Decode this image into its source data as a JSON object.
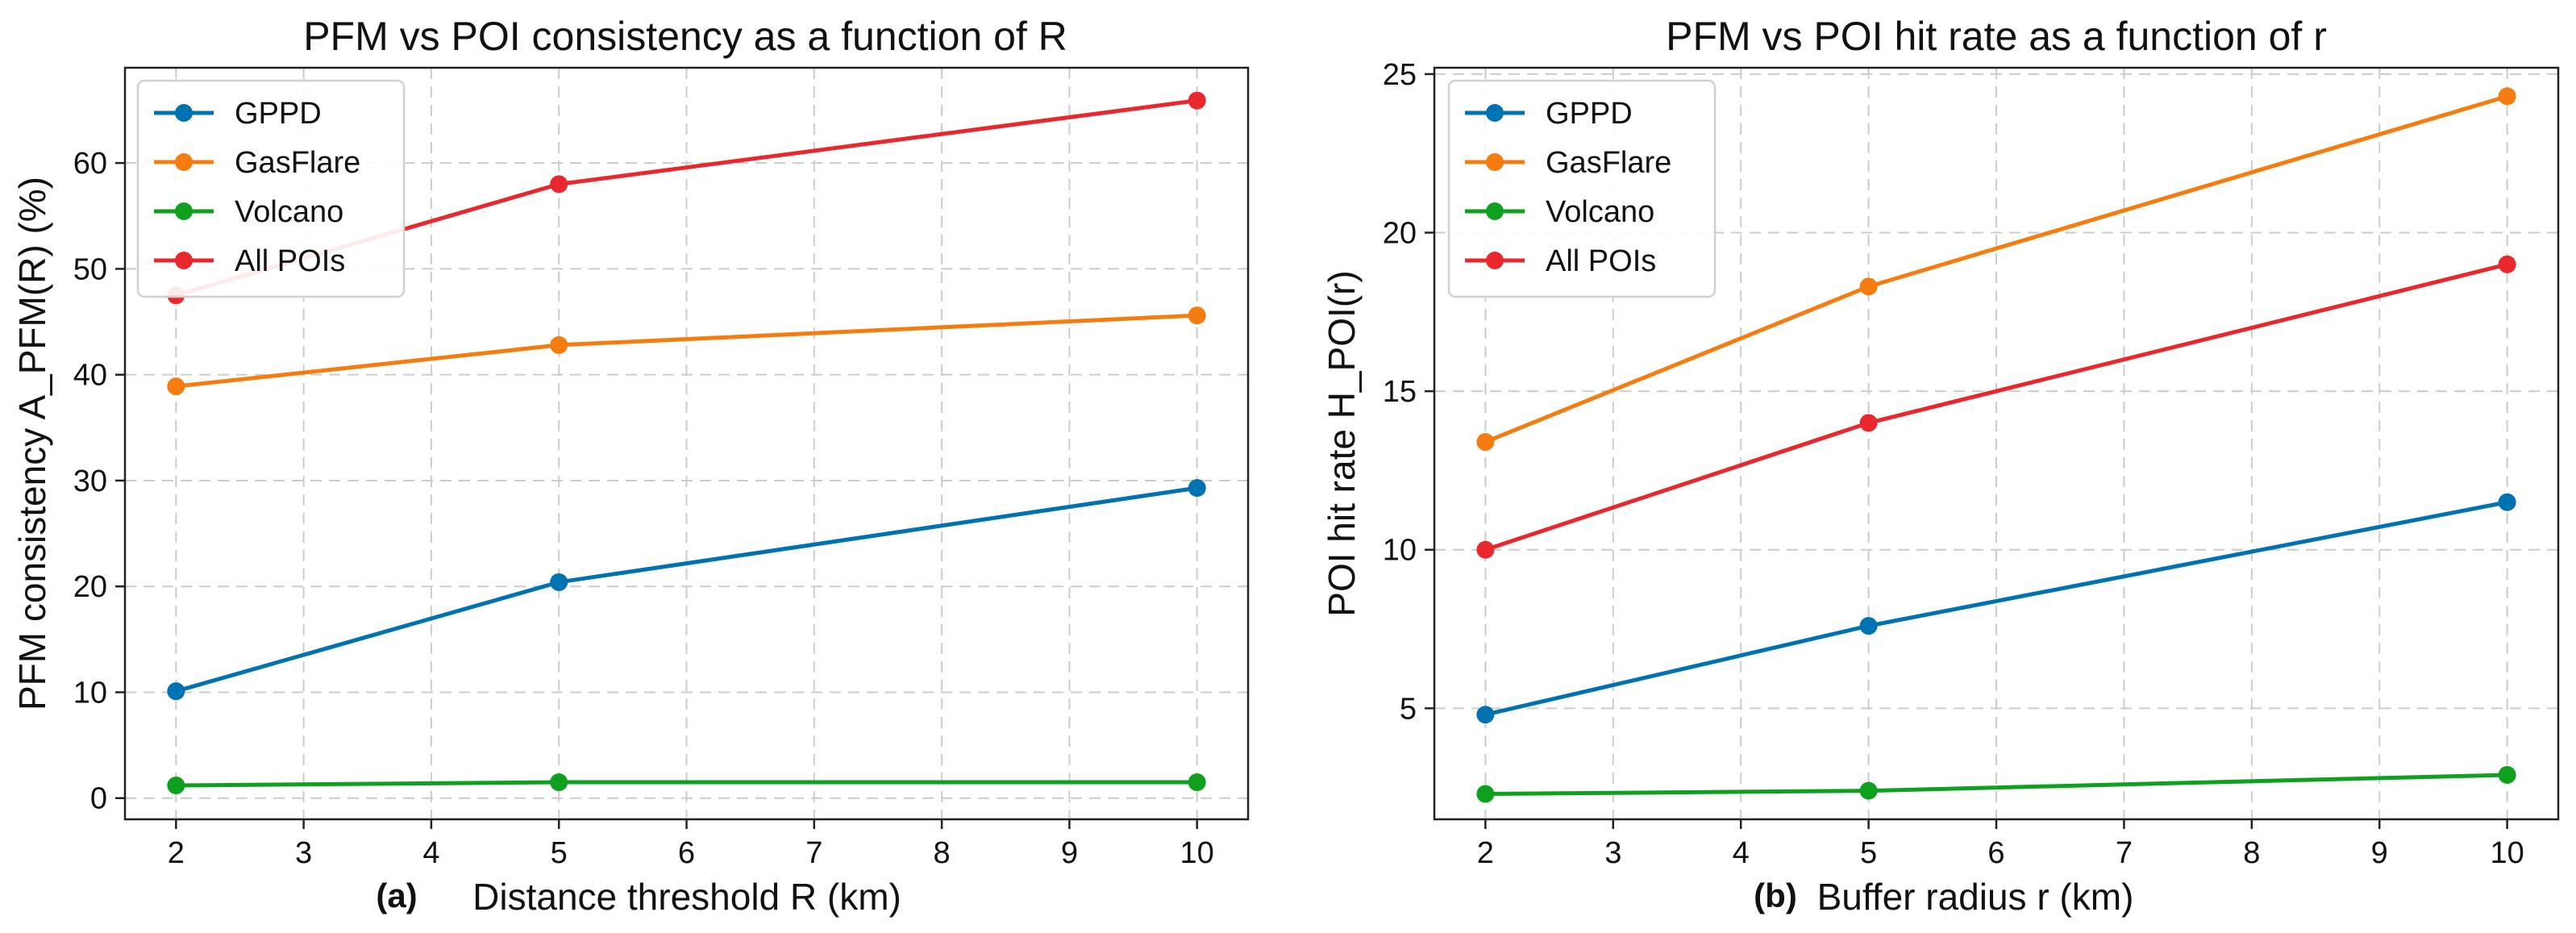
{
  "colors": {
    "GPPD": "#0072b2",
    "GasFlare": "#f57c10",
    "Volcano": "#10a020",
    "All POIs": "#e8282c"
  },
  "chart_data": [
    {
      "type": "line",
      "panel": "(a)",
      "title": "PFM vs POI consistency as a function of R",
      "xlabel": "Distance threshold R (km)",
      "ylabel": "PFM consistency A_PFM(R) (%)",
      "x": [
        2,
        5,
        10
      ],
      "xlim": [
        1.6,
        10.4
      ],
      "ylim": [
        -2,
        69
      ],
      "xticks": [
        2,
        3,
        4,
        5,
        6,
        7,
        8,
        9,
        10
      ],
      "yticks": [
        0,
        10,
        20,
        30,
        40,
        50,
        60
      ],
      "legend_position": "upper-left",
      "series": [
        {
          "name": "GPPD",
          "values": [
            10.1,
            20.4,
            29.3
          ]
        },
        {
          "name": "GasFlare",
          "values": [
            38.9,
            42.8,
            45.6
          ]
        },
        {
          "name": "Volcano",
          "values": [
            1.2,
            1.5,
            1.5
          ]
        },
        {
          "name": "All POIs",
          "values": [
            47.5,
            58.0,
            65.9
          ]
        }
      ]
    },
    {
      "type": "line",
      "panel": "(b)",
      "title": "PFM vs POI hit rate as a function of r",
      "xlabel": "Buffer radius r (km)",
      "ylabel": "POI hit rate H_POI(r)",
      "x": [
        2,
        5,
        10
      ],
      "xlim": [
        1.6,
        10.4
      ],
      "ylim": [
        1.5,
        25.2
      ],
      "xticks": [
        2,
        3,
        4,
        5,
        6,
        7,
        8,
        9,
        10
      ],
      "yticks": [
        5,
        10,
        15,
        20,
        25
      ],
      "legend_position": "upper-left",
      "series": [
        {
          "name": "GPPD",
          "values": [
            4.8,
            7.6,
            11.5
          ]
        },
        {
          "name": "GasFlare",
          "values": [
            13.4,
            18.3,
            24.3
          ]
        },
        {
          "name": "Volcano",
          "values": [
            2.3,
            2.4,
            2.9
          ]
        },
        {
          "name": "All POIs",
          "values": [
            10.0,
            14.0,
            19.0
          ]
        }
      ]
    }
  ]
}
